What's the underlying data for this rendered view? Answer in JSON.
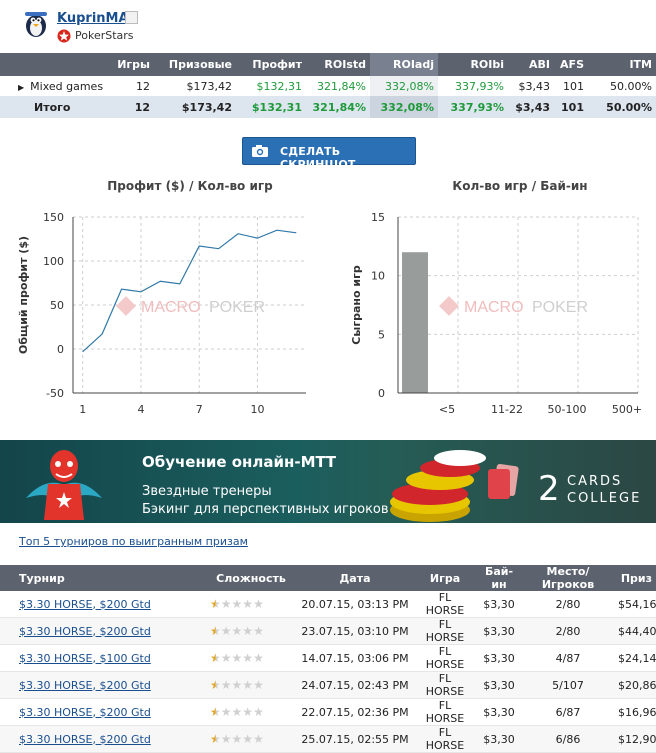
{
  "player": {
    "name": "KuprinMA",
    "room": "PokerStars"
  },
  "stats": {
    "headers": [
      "",
      "Игры",
      "Призовые",
      "Профит",
      "ROIstd",
      "ROIadj",
      "ROIbi",
      "ABI",
      "AFS",
      "ITM"
    ],
    "rows": [
      {
        "label": "Mixed games",
        "games": "12",
        "prize": "$173,42",
        "profit": "$132,31",
        "roistd": "321,84%",
        "roiadj": "332,08%",
        "roibi": "337,93%",
        "abi": "$3,43",
        "afs": "101",
        "itm": "50.00%"
      }
    ],
    "total": {
      "label": "Итого",
      "games": "12",
      "prize": "$173,42",
      "profit": "$132,31",
      "roistd": "321,84%",
      "roiadj": "332,08%",
      "roibi": "337,93%",
      "abi": "$3,43",
      "afs": "101",
      "itm": "50.00%"
    }
  },
  "screenshot_button": "СДЕЛАТЬ СКРИНШОТ",
  "watermark": {
    "part1": "MACRO",
    "part2": "POKER"
  },
  "chart_data": [
    {
      "type": "line",
      "title": "Профит ($) / Кол-во игр",
      "xlabel": "",
      "ylabel": "Общий профит ($)",
      "x": [
        1,
        2,
        3,
        4,
        5,
        6,
        7,
        8,
        9,
        10,
        11,
        12
      ],
      "series": [
        {
          "values": [
            -3,
            17,
            68,
            65,
            77,
            74,
            117,
            114,
            131,
            126,
            135,
            132
          ]
        }
      ],
      "xticks": [
        1,
        4,
        7,
        10
      ],
      "yticks": [
        -50,
        0,
        50,
        100,
        150
      ],
      "xlim": [
        0.5,
        12.5
      ],
      "ylim": [
        -50,
        150
      ],
      "grid": true,
      "color": "#2f78a8"
    },
    {
      "type": "bar",
      "title": "Кол-во игр / Бай-ин",
      "xlabel": "",
      "ylabel": "Сыграно игр",
      "categories": [
        "<5",
        "11-22",
        "50-100",
        "500+"
      ],
      "values": [
        12,
        0,
        0,
        0
      ],
      "yticks": [
        0,
        5,
        10,
        15
      ],
      "ylim": [
        0,
        15
      ],
      "grid": true,
      "color": "#989c9b"
    }
  ],
  "banner": {
    "title": "Обучение онлайн-МТТ",
    "line1": "Звездные тренеры",
    "line2": "Бэкинг для перспективных игроков",
    "logo_number": "2",
    "logo_line1": "CARDS",
    "logo_line2": "COLLEGE"
  },
  "top5_link": "Топ 5 турниров по выигранным призам",
  "tournaments": {
    "headers": [
      "Турнир",
      "Сложность",
      "Дата",
      "Игра",
      "Бай-ин",
      "Место/Игроков",
      "Приз"
    ],
    "rows": [
      {
        "name": "$3.30 HORSE, $200 Gtd",
        "date": "20.07.15, 03:13 PM",
        "game": "FL HORSE",
        "buyin": "$3,30",
        "place": "2/80",
        "prize": "$54,16",
        "difficulty": 0.5
      },
      {
        "name": "$3.30 HORSE, $200 Gtd",
        "date": "23.07.15, 03:10 PM",
        "game": "FL HORSE",
        "buyin": "$3,30",
        "place": "2/80",
        "prize": "$44,40",
        "difficulty": 0.5
      },
      {
        "name": "$3.30 HORSE, $100 Gtd",
        "date": "14.07.15, 03:06 PM",
        "game": "FL HORSE",
        "buyin": "$3,30",
        "place": "4/87",
        "prize": "$24,14",
        "difficulty": 0.5
      },
      {
        "name": "$3.30 HORSE, $200 Gtd",
        "date": "24.07.15, 02:43 PM",
        "game": "FL HORSE",
        "buyin": "$3,30",
        "place": "5/107",
        "prize": "$20,86",
        "difficulty": 0.5
      },
      {
        "name": "$3.30 HORSE, $200 Gtd",
        "date": "22.07.15, 02:36 PM",
        "game": "FL HORSE",
        "buyin": "$3,30",
        "place": "6/87",
        "prize": "$16,96",
        "difficulty": 0.5
      },
      {
        "name": "$3.30 HORSE, $200 Gtd",
        "date": "25.07.15, 02:55 PM",
        "game": "FL HORSE",
        "buyin": "$3,30",
        "place": "6/86",
        "prize": "$12,90",
        "difficulty": 0.5
      }
    ]
  }
}
